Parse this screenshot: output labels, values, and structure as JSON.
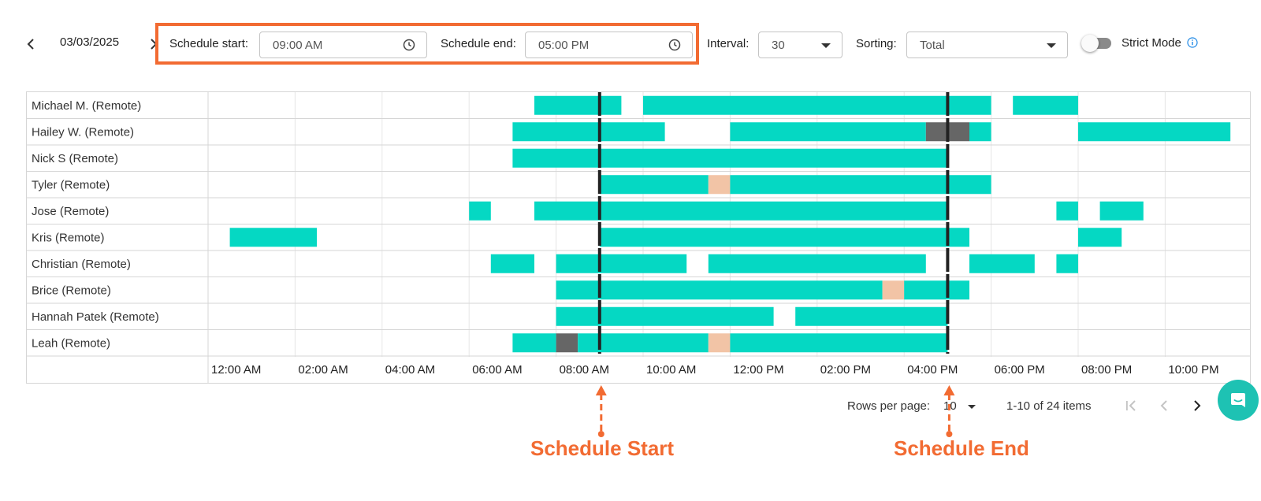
{
  "toolbar": {
    "date": "03/03/2025",
    "schedule_start_label": "Schedule start:",
    "schedule_start_value": "09:00 AM",
    "schedule_end_label": "Schedule end:",
    "schedule_end_value": "05:00 PM",
    "interval_label": "Interval:",
    "interval_value": "30",
    "sorting_label": "Sorting:",
    "sorting_value": "Total",
    "strict_mode_label": "Strict Mode",
    "strict_mode_on": false
  },
  "icons": {
    "prev_date": "chevron-left-icon",
    "next_date": "chevron-right-icon",
    "time": "clock-icon",
    "dropdown": "caret-down-icon",
    "info": "info-icon",
    "first_page": "first-page-icon",
    "prev_page": "chevron-left-icon",
    "next_page": "chevron-right-icon",
    "chat": "chat-icon"
  },
  "colors": {
    "work": "#05d8c3",
    "idle": "#666666",
    "break": "#f2c4a6",
    "marker": "#222222",
    "annotation": "#f26b32"
  },
  "timeline": {
    "tick_labels": [
      "12:00 AM",
      "02:00 AM",
      "04:00 AM",
      "06:00 AM",
      "08:00 AM",
      "10:00 AM",
      "12:00 PM",
      "02:00 PM",
      "04:00 PM",
      "06:00 PM",
      "08:00 PM",
      "10:00 PM"
    ],
    "range_hours": [
      0,
      24
    ],
    "schedule_start_hour": 9,
    "schedule_end_hour": 17
  },
  "rows": [
    {
      "name": "Michael M. (Remote)",
      "segments": [
        {
          "start": 7.5,
          "end": 9.5,
          "type": "work"
        },
        {
          "start": 10.0,
          "end": 18.0,
          "type": "work"
        },
        {
          "start": 18.5,
          "end": 20.0,
          "type": "work"
        }
      ]
    },
    {
      "name": "Hailey W. (Remote)",
      "segments": [
        {
          "start": 7.0,
          "end": 10.5,
          "type": "work"
        },
        {
          "start": 12.0,
          "end": 16.5,
          "type": "work"
        },
        {
          "start": 16.5,
          "end": 17.5,
          "type": "idle"
        },
        {
          "start": 17.5,
          "end": 18.0,
          "type": "work"
        },
        {
          "start": 20.0,
          "end": 23.5,
          "type": "work"
        }
      ]
    },
    {
      "name": "Nick S (Remote)",
      "segments": [
        {
          "start": 7.0,
          "end": 17.0,
          "type": "work"
        }
      ]
    },
    {
      "name": "Tyler (Remote)",
      "segments": [
        {
          "start": 9.0,
          "end": 11.5,
          "type": "work"
        },
        {
          "start": 11.5,
          "end": 12.0,
          "type": "break"
        },
        {
          "start": 12.0,
          "end": 18.0,
          "type": "work"
        }
      ]
    },
    {
      "name": "Jose (Remote)",
      "segments": [
        {
          "start": 6.0,
          "end": 6.5,
          "type": "work"
        },
        {
          "start": 7.5,
          "end": 17.0,
          "type": "work"
        },
        {
          "start": 19.5,
          "end": 20.0,
          "type": "work"
        },
        {
          "start": 20.5,
          "end": 21.5,
          "type": "work"
        }
      ]
    },
    {
      "name": "Kris (Remote)",
      "segments": [
        {
          "start": 0.5,
          "end": 2.5,
          "type": "work"
        },
        {
          "start": 9.0,
          "end": 17.5,
          "type": "work"
        },
        {
          "start": 20.0,
          "end": 21.0,
          "type": "work"
        }
      ]
    },
    {
      "name": "Christian (Remote)",
      "segments": [
        {
          "start": 6.5,
          "end": 7.5,
          "type": "work"
        },
        {
          "start": 8.0,
          "end": 11.0,
          "type": "work"
        },
        {
          "start": 11.5,
          "end": 16.5,
          "type": "work"
        },
        {
          "start": 17.5,
          "end": 19.0,
          "type": "work"
        },
        {
          "start": 19.5,
          "end": 20.0,
          "type": "work"
        }
      ]
    },
    {
      "name": "Brice (Remote)",
      "segments": [
        {
          "start": 8.0,
          "end": 15.5,
          "type": "work"
        },
        {
          "start": 15.5,
          "end": 16.0,
          "type": "break"
        },
        {
          "start": 16.0,
          "end": 17.5,
          "type": "work"
        }
      ]
    },
    {
      "name": "Hannah Patek (Remote)",
      "segments": [
        {
          "start": 8.0,
          "end": 13.0,
          "type": "work"
        },
        {
          "start": 13.5,
          "end": 17.0,
          "type": "work"
        }
      ]
    },
    {
      "name": "Leah (Remote)",
      "segments": [
        {
          "start": 7.0,
          "end": 8.0,
          "type": "work"
        },
        {
          "start": 8.0,
          "end": 8.5,
          "type": "idle"
        },
        {
          "start": 8.5,
          "end": 11.5,
          "type": "work"
        },
        {
          "start": 11.5,
          "end": 12.0,
          "type": "break"
        },
        {
          "start": 12.0,
          "end": 17.0,
          "type": "work"
        }
      ]
    }
  ],
  "footer": {
    "rows_per_page_label": "Rows per page:",
    "rows_per_page_value": "10",
    "range_text": "1-10 of 24 items"
  },
  "annotations": {
    "start_label": "Schedule Start",
    "end_label": "Schedule End"
  }
}
